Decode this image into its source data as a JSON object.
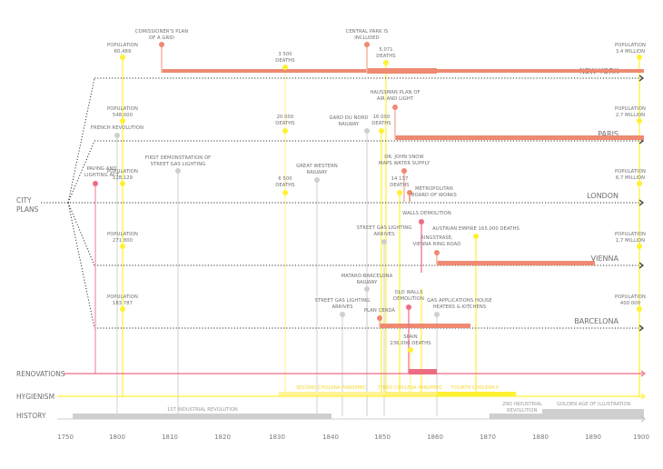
{
  "colors": {
    "plan": "#ee8a72",
    "planLight": "#f5b4a3",
    "renovation": "#ee6c82",
    "hygienism": "#fff033",
    "hygienismLight": "#fff49a",
    "history": "#cfcfcf",
    "text": "#6e6e6e"
  },
  "axis": {
    "ticks": [
      "1750",
      "1800",
      "1810",
      "1820",
      "1830",
      "1840",
      "1850",
      "1860",
      "1870",
      "1880",
      "1890",
      "1900"
    ]
  },
  "categories": {
    "city_plans": [
      "CITY",
      "PLANS"
    ],
    "renovations": "RENOVATIONS",
    "hygienism": "HYGIENISM",
    "history": "HISTORY"
  },
  "cities": [
    {
      "name": "NEW YORK"
    },
    {
      "name": "PARIS"
    },
    {
      "name": "LONDON"
    },
    {
      "name": "VIENNA"
    },
    {
      "name": "BARCELONA"
    }
  ],
  "populations": [
    {
      "city": "NEW YORK",
      "start": [
        "POPULATION",
        "60,489"
      ],
      "end": [
        "POPULATION",
        "3,4 MILLION"
      ]
    },
    {
      "city": "PARIS",
      "start": [
        "POPULATION",
        "548,000"
      ],
      "end": [
        "POPULATION",
        "2,7 MILLION"
      ]
    },
    {
      "city": "LONDON",
      "start": [
        "POPULATION",
        "128,129"
      ],
      "end": [
        "POPULATION",
        "6,7 MILLION"
      ]
    },
    {
      "city": "VIENNA",
      "start": [
        "POPULATION",
        "271 800"
      ],
      "end": [
        "POPULATION",
        "1,7 MILLION"
      ]
    },
    {
      "city": "BARCELONA",
      "start": [
        "POPULATION",
        "183 787"
      ],
      "end": [
        "POPULATION",
        "400 000"
      ]
    }
  ],
  "events": {
    "plans": [
      {
        "id": "commissioners-plan",
        "lines": [
          "COMISSIONER'S PLAN",
          "OF A GRID"
        ]
      },
      {
        "id": "central-park",
        "lines": [
          "CENTRAL PARK IS",
          "INCLUDED"
        ]
      },
      {
        "id": "haussman-plan",
        "lines": [
          "HAUSSMAN PLAN OF",
          "AIR AND LIGHT"
        ]
      },
      {
        "id": "john-snow",
        "lines": [
          "DR. JOHN SNOW",
          "MAPS WATER SUPPLY"
        ]
      },
      {
        "id": "metropolitan-board",
        "lines": [
          "METROPOLITAN",
          "BOARD OF WORKS"
        ]
      },
      {
        "id": "ringstrasse",
        "lines": [
          "RINGSTRASE,",
          "VIENNA RING ROAD"
        ]
      },
      {
        "id": "plan-cerda",
        "lines": [
          "PLAN CERDÀ"
        ]
      }
    ],
    "renovations": [
      {
        "id": "paving-lighting-act",
        "lines": [
          "PAVING AND",
          "LIGHTING ACT"
        ]
      },
      {
        "id": "walls-demolition",
        "lines": [
          "WALLS DEMOLITION"
        ]
      },
      {
        "id": "old-walls-demolition",
        "lines": [
          "OLD WALLS",
          "DEMOLITION"
        ]
      }
    ],
    "deaths": [
      {
        "id": "ny-3500",
        "lines": [
          "3 500",
          "DEATHS"
        ]
      },
      {
        "id": "ny-5071",
        "lines": [
          "5,071",
          "DEATHS"
        ]
      },
      {
        "id": "paris-20000",
        "lines": [
          "20 000",
          "DEATHS"
        ]
      },
      {
        "id": "paris-16000",
        "lines": [
          "16 000",
          "DEATHS"
        ]
      },
      {
        "id": "london-6500",
        "lines": [
          "6 500",
          "DEATHS"
        ]
      },
      {
        "id": "london-14137",
        "lines": [
          "14 137",
          "DEATHS"
        ]
      },
      {
        "id": "austria-165000",
        "lines": [
          "AUSTRIAN EMPIRE 165,000 DEATHS"
        ]
      },
      {
        "id": "spain-236000",
        "lines": [
          "SPAIN",
          "236,000 DEATHS"
        ]
      }
    ],
    "history": [
      {
        "id": "french-revolution",
        "lines": [
          "FRENCH REVOLUTION"
        ]
      },
      {
        "id": "first-gas-lighting",
        "lines": [
          "FIRST DEMONSTRATION OF",
          "STREET GAS LIGHTING"
        ]
      },
      {
        "id": "great-western",
        "lines": [
          "GREAT WESTERN",
          "RAILWAY"
        ]
      },
      {
        "id": "gare-du-nord",
        "lines": [
          "GARD DU NORD",
          "RAILWAY"
        ]
      },
      {
        "id": "vienna-gas-lighting",
        "lines": [
          "STREET GAS LIGHTING",
          "ARRIVES"
        ]
      },
      {
        "id": "mataro-railway",
        "lines": [
          "MATARÓ-BARCELONA",
          "RAILWAY"
        ]
      },
      {
        "id": "barcelona-gas-lighting",
        "lines": [
          "STREET GAS LIGHTING",
          "ARRIVES"
        ]
      },
      {
        "id": "gas-applications",
        "lines": [
          "GAS APPLICATIONS HOUSE",
          "HEATERS & KITCHENS"
        ]
      }
    ]
  },
  "bands": {
    "hygienism": [
      {
        "label": "SECOND CHOLERA PANDEMIC"
      },
      {
        "label": "THIRD CHOLERA PANDEMIC"
      },
      {
        "label": "FOURTH CHOLERA P"
      }
    ],
    "history": [
      {
        "label": "1ST INDUSTRIAL REVOLUTION"
      },
      {
        "label": "2ND INDUSTRIAL REVOLUTION",
        "lines": [
          "2ND INDUSTRIAL",
          "REVOLUTION"
        ]
      },
      {
        "label": "GOLDEN AGE OF ILLUSTRATION"
      }
    ]
  }
}
